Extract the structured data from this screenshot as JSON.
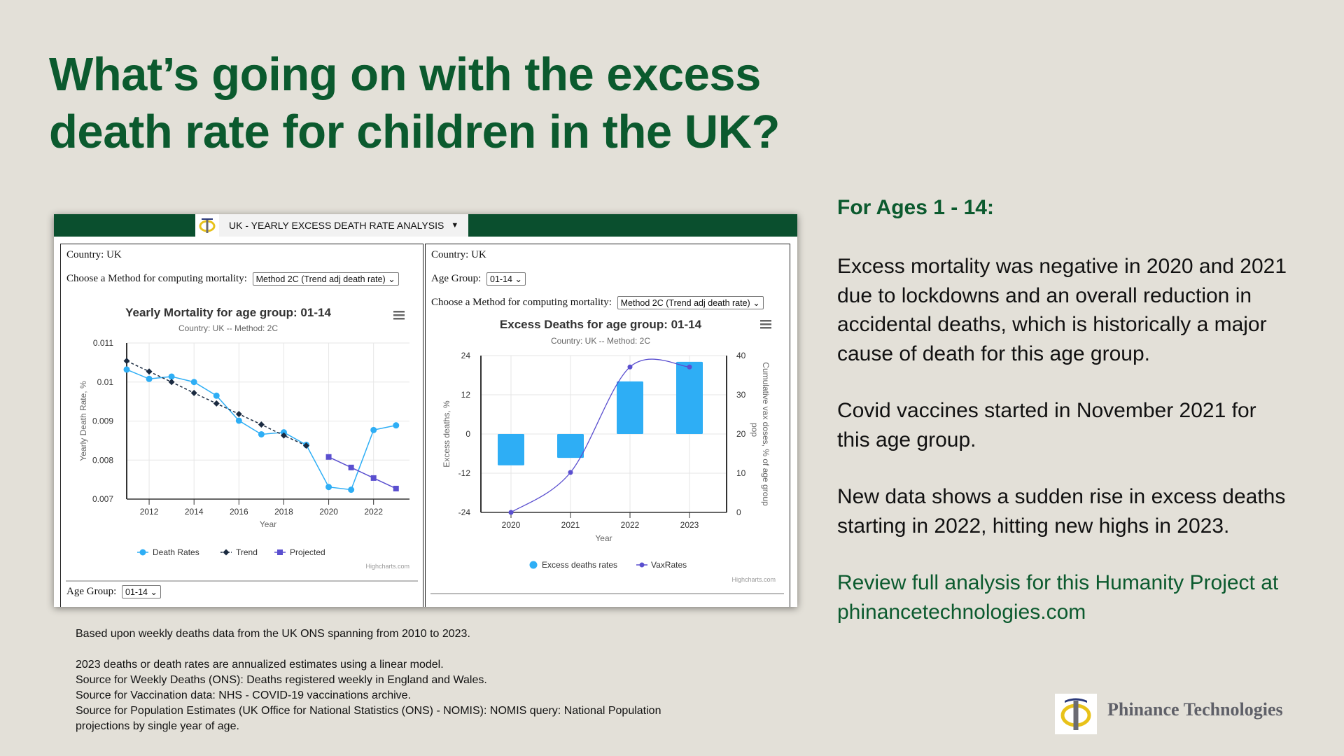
{
  "headline": [
    "What’s going on with the excess",
    "death rate for children in the UK?"
  ],
  "app": {
    "tab_title": "UK - YEARLY EXCESS DEATH RATE ANALYSIS",
    "left_panel": {
      "country_label": "Country: UK",
      "method_label": "Choose a Method for computing mortality:",
      "method_value": "Method 2C (Trend adj death rate)",
      "age_label": "Age Group:",
      "age_value": "01-14"
    },
    "right_panel": {
      "country_label": "Country: UK",
      "age_label": "Age Group:",
      "age_value": "01-14",
      "method_label": "Choose a Method for computing mortality:",
      "method_value": "Method 2C (Trend adj death rate)"
    }
  },
  "chart_data": [
    {
      "type": "line",
      "title": "Yearly Mortality for age group: 01-14",
      "subtitle": "Country: UK -- Method: 2C",
      "xlabel": "Year",
      "ylabel": "Yearly Death Rate, %",
      "xlim": [
        2011,
        2023.6
      ],
      "ylim": [
        0.007,
        0.011
      ],
      "xticks": [
        "2012",
        "2014",
        "2016",
        "2018",
        "2020",
        "2022"
      ],
      "yticks": [
        "0.011",
        "0.01",
        "0.009",
        "0.008",
        "0.007"
      ],
      "grid": true,
      "legend_position": "bottom",
      "credits": "Highcharts.com",
      "series": [
        {
          "name": "Death Rates",
          "color": "#2eaef5",
          "marker": "circle",
          "dash": false,
          "x": [
            2011,
            2012,
            2013,
            2014,
            2015,
            2016,
            2017,
            2018,
            2019,
            2020,
            2021,
            2022,
            2023
          ],
          "y": [
            0.01032,
            0.01008,
            0.01014,
            0.01,
            0.00965,
            0.00901,
            0.00866,
            0.00871,
            0.00839,
            0.00731,
            0.00724,
            0.00877,
            0.00889
          ]
        },
        {
          "name": "Trend",
          "color": "#1a2a40",
          "marker": "diamond",
          "dash": true,
          "x": [
            2011,
            2012,
            2013,
            2014,
            2015,
            2016,
            2017,
            2018,
            2019
          ],
          "y": [
            0.01054,
            0.01027,
            0.01,
            0.00972,
            0.00945,
            0.00918,
            0.00891,
            0.00863,
            0.00837
          ]
        },
        {
          "name": "Projected",
          "color": "#5a4fcf",
          "marker": "square",
          "dash": false,
          "x": [
            2020,
            2021,
            2022,
            2023
          ],
          "y": [
            0.00808,
            0.00781,
            0.00754,
            0.00727
          ]
        }
      ]
    },
    {
      "type": "bar",
      "title": "Excess Deaths for age group: 01-14",
      "subtitle": "Country: UK -- Method: 2C",
      "xlabel": "Year",
      "ylabel": "Excess deaths, %",
      "ylabel_right": [
        "Cumulative vax doses, % of age group",
        "pop"
      ],
      "categories": [
        "2020",
        "2021",
        "2022",
        "2023"
      ],
      "ylim": [
        -24,
        24
      ],
      "ylim_right": [
        0,
        40
      ],
      "yticks": [
        "24",
        "12",
        "0",
        "-12",
        "-24"
      ],
      "yticks_right": [
        "40",
        "30",
        "20",
        "10",
        "0"
      ],
      "grid": true,
      "legend_position": "bottom",
      "credits": "Highcharts.com",
      "series": [
        {
          "name": "Excess deaths rates",
          "type": "bar",
          "axis": "left",
          "color": "#2eaef5",
          "values": [
            -9.6,
            -7.3,
            16.1,
            22.1
          ]
        },
        {
          "name": "VaxRates",
          "type": "spline",
          "axis": "right",
          "color": "#5a4fcf",
          "values": [
            0,
            10.2,
            37.1,
            37.1
          ]
        }
      ]
    }
  ],
  "sidebar_text": {
    "heading": "For Ages 1 - 14:",
    "paragraphs": [
      [
        "Excess mortality was negative in 2020 and 2021",
        "due to lockdowns and an overall reduction in",
        "accidental deaths, which is historically a major",
        "cause of death for this age group."
      ],
      [
        "Covid vaccines started in November 2021 for",
        "this age group."
      ],
      [
        "New data shows a sudden rise in excess deaths",
        "starting in 2022, hitting new highs in 2023."
      ]
    ],
    "link_lines": [
      "Review full analysis for this Humanity Project at",
      "phinancetechnologies.com"
    ]
  },
  "footnotes": {
    "first": "Based upon weekly deaths data from the UK ONS spanning from 2010 to 2023.",
    "lines": [
      "2023 deaths or death rates are annualized estimates using a linear model.",
      "Source for Weekly Deaths (ONS): Deaths registered weekly in England and Wales.",
      "Source for Vaccination data: NHS - COVID-19 vaccinations archive.",
      "Source for Population Estimates (UK Office for National Statistics (ONS) - NOMIS): NOMIS query: National Population",
      "projections by single year of age."
    ]
  },
  "brand": {
    "name": "Phinance Technologies",
    "logo_colors": {
      "ring": "#e8c21a",
      "bar": "#6b6b73",
      "top": "#2b3a7a"
    }
  }
}
